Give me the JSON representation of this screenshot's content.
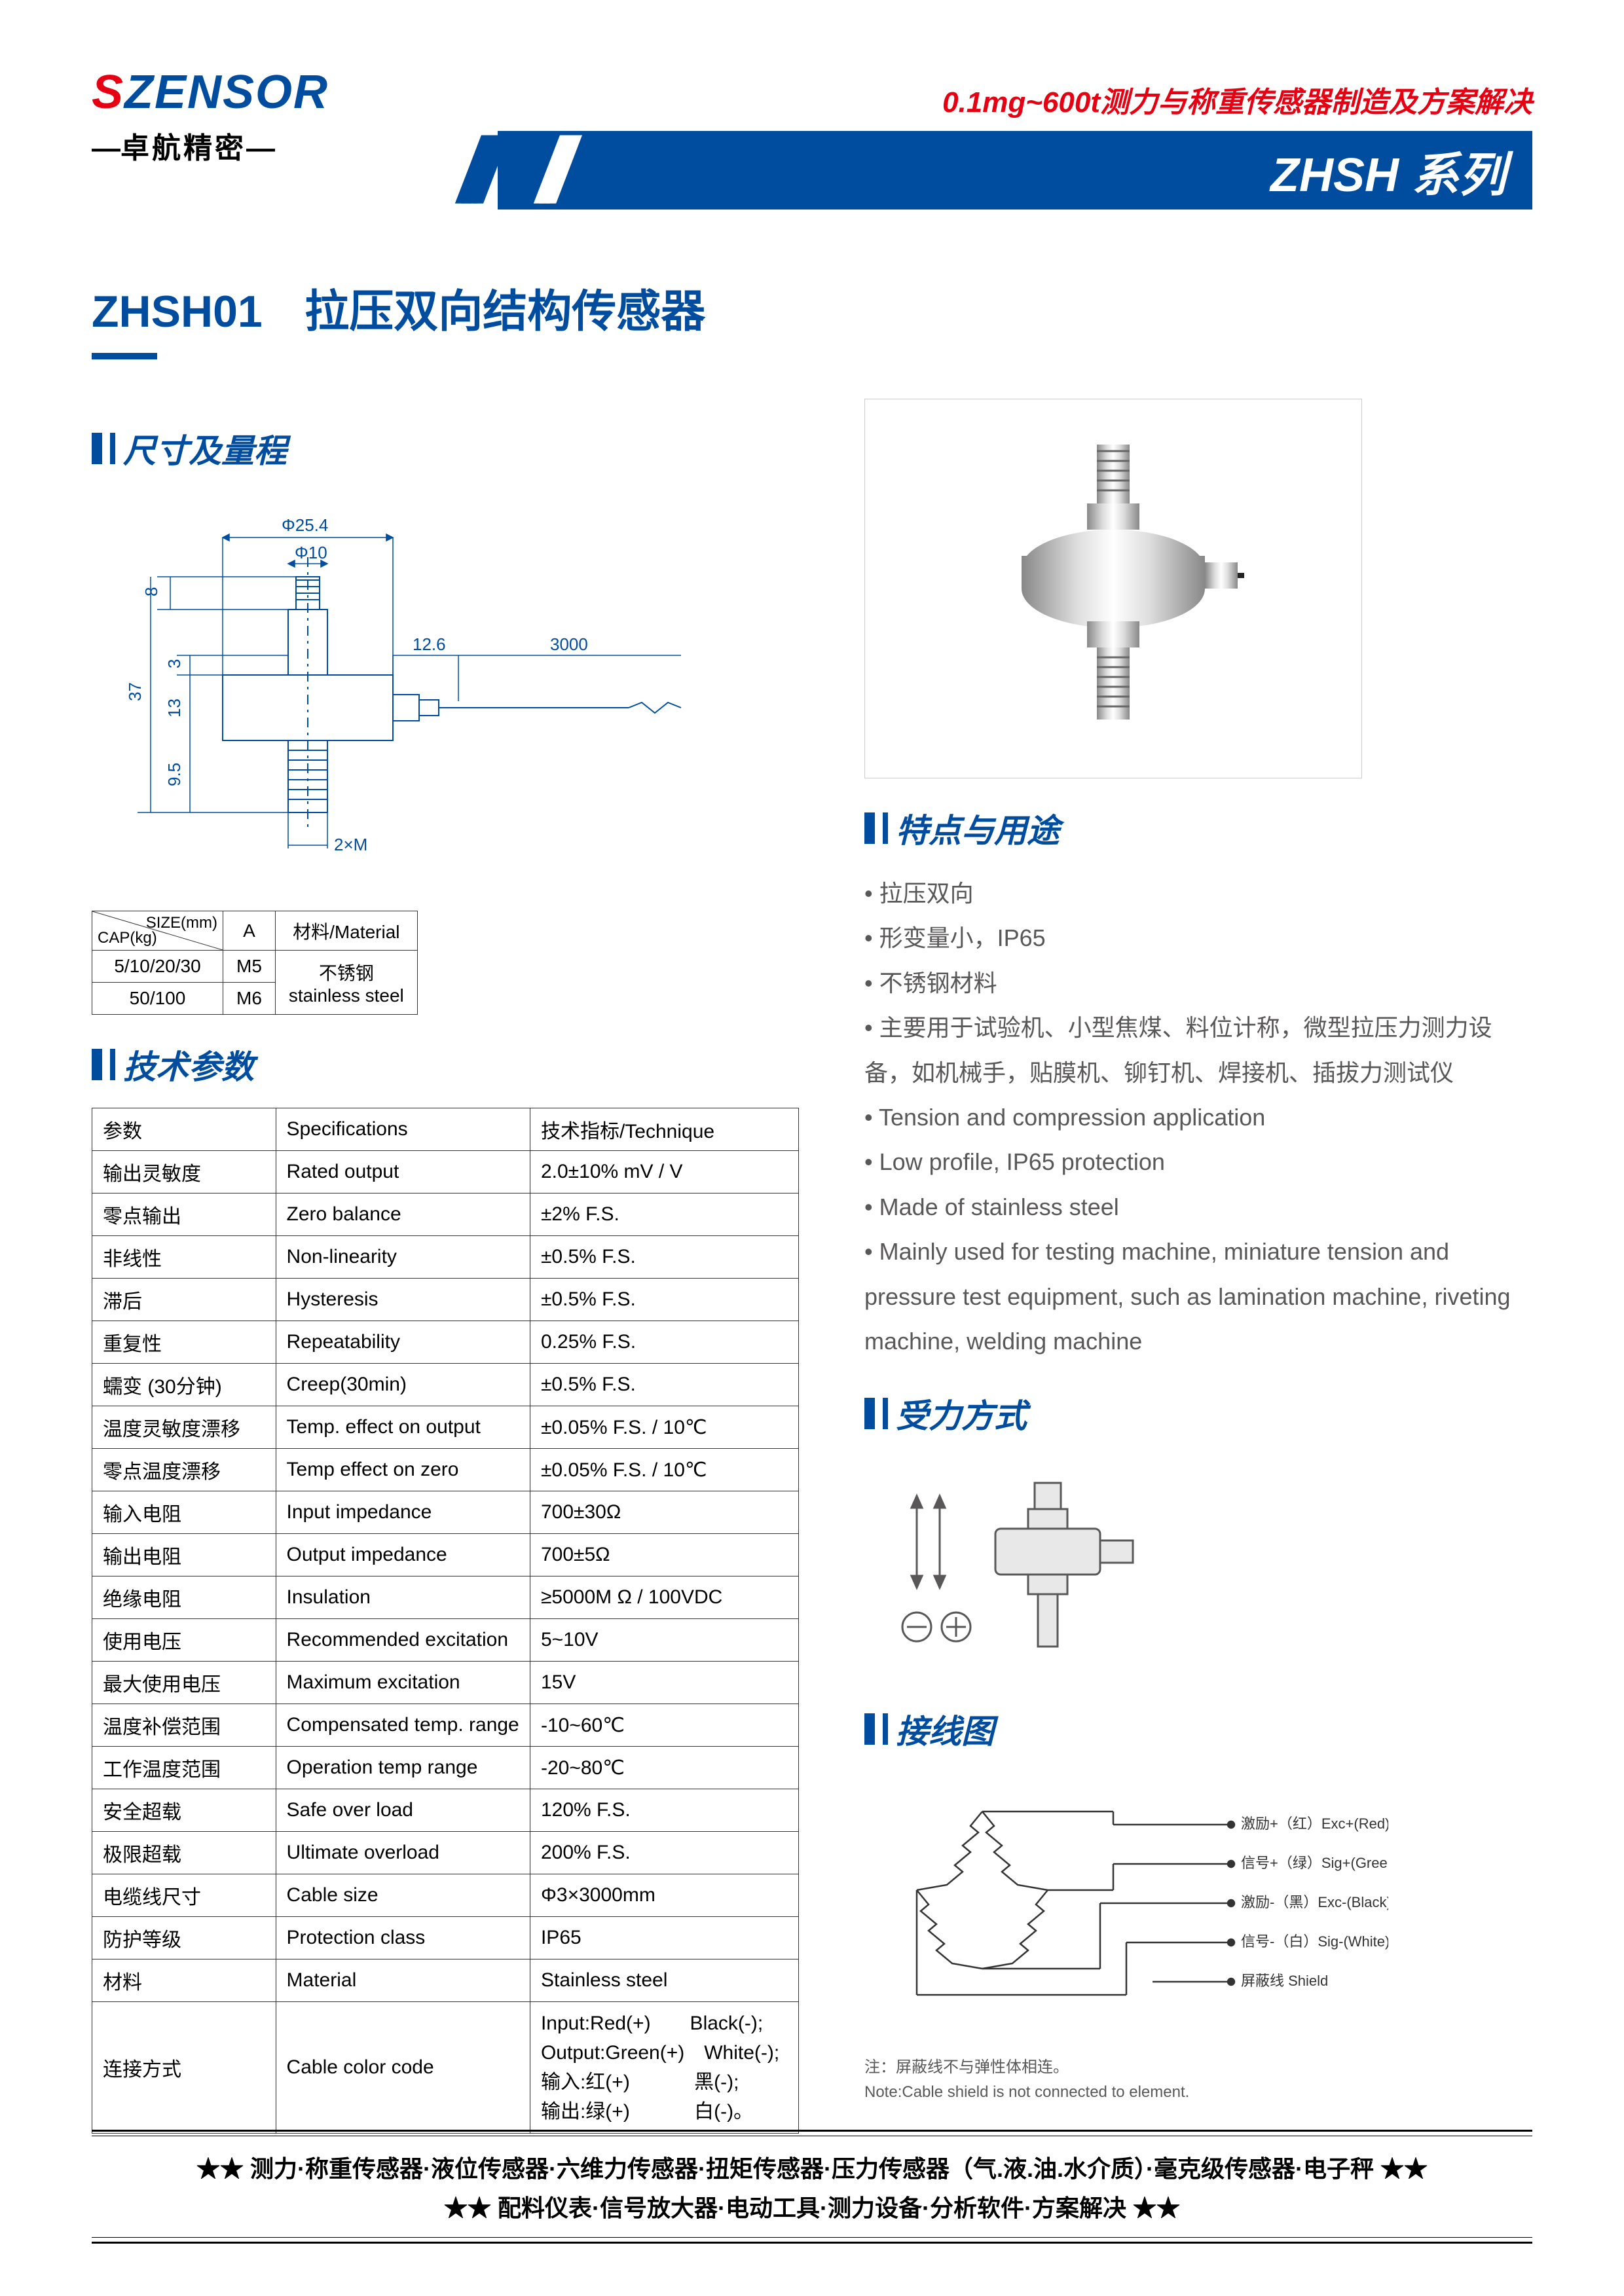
{
  "header": {
    "logo_s": "S",
    "logo_rest": "ZENSOR",
    "logo_sub": "卓航精密",
    "tagline": "0.1mg~600t测力与称重传感器制造及方案解决",
    "series": "ZHSH 系列"
  },
  "title": {
    "model": "ZHSH01",
    "desc": "拉压双向结构传感器"
  },
  "sections": {
    "dimensions": "尺寸及量程",
    "specs": "技术参数",
    "features": "特点与用途",
    "force": "受力方式",
    "wiring": "接线图"
  },
  "dim_labels": {
    "d254": "Φ25.4",
    "d10": "Φ10",
    "h8": "8",
    "h3": "3",
    "h13": "13",
    "h37": "37",
    "h95": "9.5",
    "l126": "12.6",
    "l3000": "3000",
    "m2": "2×M"
  },
  "size_table": {
    "h_cap": "CAP(kg)",
    "h_size": "SIZE(mm)",
    "h_a": "A",
    "h_mat": "材料/Material",
    "r1_cap": "5/10/20/30",
    "r1_a": "M5",
    "r2_cap": "50/100",
    "r2_a": "M6",
    "mat": "不锈钢\nstainless steel"
  },
  "spec_table": {
    "hdr": [
      "参数",
      "Specifications",
      "技术指标/Technique"
    ],
    "rows": [
      [
        "输出灵敏度",
        "Rated output",
        "2.0±10%  mV / V"
      ],
      [
        "零点输出",
        "Zero balance",
        "±2% F.S."
      ],
      [
        "非线性",
        "Non-linearity",
        "±0.5% F.S."
      ],
      [
        "滞后",
        "Hysteresis",
        "±0.5% F.S."
      ],
      [
        "重复性",
        "Repeatability",
        "0.25% F.S."
      ],
      [
        "蠕变 (30分钟)",
        "Creep(30min)",
        "±0.5% F.S."
      ],
      [
        "温度灵敏度漂移",
        "Temp. effect on output",
        "±0.05% F.S. / 10℃"
      ],
      [
        "零点温度漂移",
        "Temp effect on zero",
        "±0.05% F.S. / 10℃"
      ],
      [
        "输入电阻",
        "Input impedance",
        "700±30Ω"
      ],
      [
        "输出电阻",
        "Output impedance",
        "700±5Ω"
      ],
      [
        "绝缘电阻",
        "Insulation",
        "≥5000M Ω / 100VDC"
      ],
      [
        "使用电压",
        "Recommended excitation",
        "5~10V"
      ],
      [
        "最大使用电压",
        "Maximum excitation",
        "15V"
      ],
      [
        "温度补偿范围",
        "Compensated temp. range",
        "-10~60℃"
      ],
      [
        "工作温度范围",
        "Operation temp range",
        "-20~80℃"
      ],
      [
        "安全超载",
        "Safe over load",
        "120% F.S."
      ],
      [
        "极限超载",
        "Ultimate overload",
        "200% F.S."
      ],
      [
        "电缆线尺寸",
        "Cable size",
        "Φ3×3000mm"
      ],
      [
        "防护等级",
        "Protection class",
        "IP65"
      ],
      [
        "材料",
        "Material",
        "Stainless steel"
      ],
      [
        "连接方式",
        "Cable color code",
        "Input:Red(+)　　Black(-);\nOutput:Green(+)　White(-);\n输入:红(+)　　　 黑(-);\n输出:绿(+)　　　 白(-)。"
      ]
    ]
  },
  "features": [
    "拉压双向",
    "形变量小，IP65",
    "不锈钢材料",
    "主要用于试验机、小型焦煤、料位计称，微型拉压力测力设备，如机械手，贴膜机、铆钉机、焊接机、插拔力测试仪",
    "Tension and compression application",
    "Low profile, IP65 protection",
    "Made of stainless steel",
    "Mainly used for testing machine, miniature tension and pressure test equipment, such as lamination machine, riveting machine, welding machine"
  ],
  "wiring": {
    "exc_p": "激励+（红）Exc+(Red)",
    "sig_p": "信号+（绿）Sig+(Green)",
    "exc_n": "激励-（黑）Exc-(Black)",
    "sig_n": "信号-（白）Sig-(White)",
    "shield": "屏蔽线 Shield",
    "note1": "注：屏蔽线不与弹性体相连。",
    "note2": "Note:Cable shield is not connected to element."
  },
  "footer": {
    "line1": "★★ 测力·称重传感器·液位传感器·六维力传感器·扭矩传感器·压力传感器（气.液.油.水介质）·毫克级传感器·电子秤 ★★",
    "line2": "★★ 配料仪表·信号放大器·电动工具·测力设备·分析软件·方案解决 ★★"
  },
  "colors": {
    "blue": "#004da0",
    "red": "#e60012",
    "gray": "#595757"
  }
}
